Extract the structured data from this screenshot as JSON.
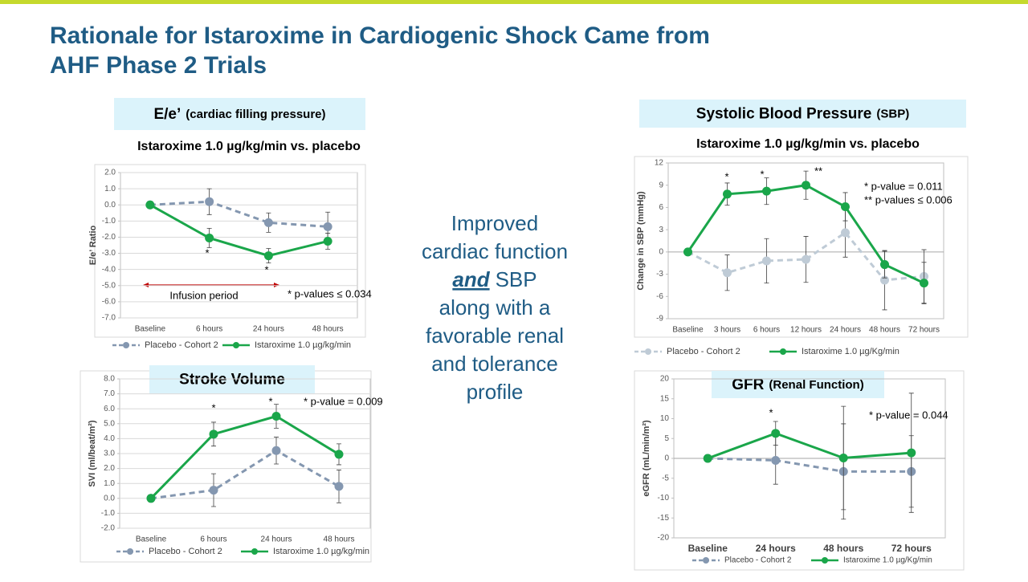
{
  "title": [
    "Rationale for Istaroxime in Cardiogenic Shock Came from",
    "AHF Phase 2 Trials"
  ],
  "center_text": [
    "Improved",
    "cardiac function",
    "and",
    "SBP",
    "along with a",
    "favorable renal",
    "and tolerance",
    "profile"
  ],
  "chart_data": [
    {
      "type": "line",
      "title": "E/e’",
      "title_note": "(cardiac filling pressure)",
      "subtitle": "Istaroxime 1.0 µg/kg/min vs. placebo",
      "ylabel": "E/e’ Ratio",
      "categories": [
        "Baseline",
        "6 hours",
        "24 hours",
        "48 hours"
      ],
      "series": [
        {
          "name": "Placebo - Cohort 2",
          "color": "#8497b0",
          "linestyle": "dashed",
          "values": [
            0,
            0.2,
            -1.1,
            -1.35
          ],
          "errors": [
            0,
            0.8,
            0.6,
            0.9
          ]
        },
        {
          "name": "Istaroxime 1.0 µg/kg/min",
          "color": "#1aa64a",
          "linestyle": "solid",
          "values": [
            0,
            -2.05,
            -3.15,
            -2.25
          ],
          "errors": [
            0,
            0.6,
            0.45,
            0.5
          ]
        }
      ],
      "ylim": [
        -7,
        2
      ],
      "yticks": [
        {
          "value": -7,
          "label": "-7.0"
        },
        {
          "value": -6,
          "label": "-6.0"
        },
        {
          "value": -5,
          "label": "-5.0"
        },
        {
          "value": -4,
          "label": "-4.0"
        },
        {
          "value": -3,
          "label": "-3.0"
        },
        {
          "value": -2,
          "label": "-2.0"
        },
        {
          "value": -1,
          "label": "-1.0"
        },
        {
          "value": 0,
          "label": "0.0"
        },
        {
          "value": 1,
          "label": "1.0"
        },
        {
          "value": 2,
          "label": "2.0"
        }
      ],
      "grid": true,
      "annotations": [
        "*",
        "*",
        "Infusion period",
        "* p-values ≤ 0.034"
      ]
    },
    {
      "type": "line",
      "title": "Systolic Blood Pressure",
      "title_note": "(SBP)",
      "subtitle": "Istaroxime 1.0 µg/kg/min vs. placebo",
      "ylabel": "Change in SBP (mmHg)",
      "categories": [
        "Baseline",
        "3 hours",
        "6 hours",
        "12 hours",
        "24 hours",
        "48 hours",
        "72 hours"
      ],
      "series": [
        {
          "name": "Placebo - Cohort 2",
          "color": "#bfcbd6",
          "linestyle": "dashed",
          "values": [
            0,
            -2.8,
            -1.2,
            -1.0,
            2.6,
            -3.8,
            -3.3
          ],
          "errors": [
            0,
            2.4,
            3,
            3.1,
            3.3,
            4,
            3.6
          ]
        },
        {
          "name": "Istaroxime 1.0 µg/Kg/min",
          "color": "#1aa64a",
          "linestyle": "solid",
          "values": [
            0,
            7.8,
            8.2,
            9.0,
            6.1,
            -1.7,
            -4.2
          ],
          "errors": [
            0,
            1.5,
            1.8,
            1.9,
            1.9,
            1.8,
            2.8
          ]
        }
      ],
      "ylim": [
        -9,
        12
      ],
      "yticks": [
        -9,
        -6,
        -3,
        0,
        3,
        6,
        9,
        12
      ],
      "grid": false,
      "annotations": [
        "*",
        "*",
        "**",
        "*  p-value = 0.011",
        "** p-values ≤ 0.006"
      ]
    },
    {
      "type": "line",
      "title": "Stroke Volume",
      "title_note": "",
      "subtitle": "",
      "ylabel": "SVI (ml/beat/m²)",
      "categories": [
        "Baseline",
        "6 hours",
        "24 hours",
        "48 hours"
      ],
      "series": [
        {
          "name": "Placebo - Cohort 2",
          "color": "#8497b0",
          "linestyle": "dashed",
          "values": [
            0,
            0.55,
            3.2,
            0.8
          ],
          "errors": [
            0,
            1.1,
            0.9,
            1.1
          ]
        },
        {
          "name": "Istaroxime 1.0 µg/kg/min",
          "color": "#1aa64a",
          "linestyle": "solid",
          "values": [
            0,
            4.3,
            5.5,
            2.95
          ],
          "errors": [
            0,
            0.8,
            0.8,
            0.7
          ]
        }
      ],
      "ylim": [
        -2,
        8
      ],
      "yticks": [
        {
          "value": -2,
          "label": "-2.0"
        },
        {
          "value": -1,
          "label": "-1.0"
        },
        {
          "value": 0,
          "label": "0.0"
        },
        {
          "value": 1,
          "label": "1.0"
        },
        {
          "value": 2,
          "label": "2.0"
        },
        {
          "value": 3,
          "label": "3.0"
        },
        {
          "value": 4,
          "label": "4.0"
        },
        {
          "value": 5,
          "label": "5.0"
        },
        {
          "value": 6,
          "label": "6.0"
        },
        {
          "value": 7,
          "label": "7.0"
        },
        {
          "value": 8,
          "label": "8.0"
        }
      ],
      "grid": true,
      "annotations": [
        "*",
        "*",
        "* p-value = 0.009"
      ]
    },
    {
      "type": "line",
      "title": "GFR",
      "title_note": "(Renal Function)",
      "subtitle": "",
      "ylabel": "eGFR (mL/min/m²)",
      "categories": [
        "Baseline",
        "24 hours",
        "48 hours",
        "72 hours"
      ],
      "series": [
        {
          "name": "Placebo - Cohort 2",
          "color": "#8497b0",
          "linestyle": "dashed",
          "values": [
            0,
            -0.5,
            -3.3,
            -3.3
          ],
          "errors": [
            0,
            6,
            12,
            9
          ]
        },
        {
          "name": "Istaroxime 1.0 µg/Kg/min",
          "color": "#1aa64a",
          "linestyle": "solid",
          "values": [
            0,
            6.3,
            0.1,
            1.4
          ],
          "errors": [
            0,
            3,
            13,
            15
          ]
        }
      ],
      "ylim": [
        -20,
        20
      ],
      "yticks": [
        -20,
        -15,
        -10,
        -5,
        0,
        5,
        10,
        15,
        20
      ],
      "grid": false,
      "annotations": [
        "*",
        "* p-value = 0.044"
      ]
    }
  ]
}
